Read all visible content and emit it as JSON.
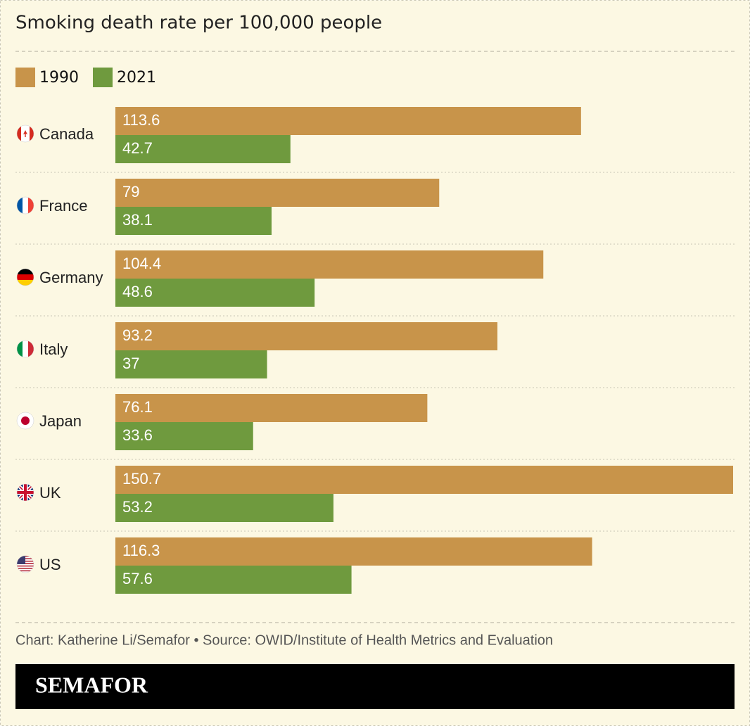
{
  "chart_data": {
    "type": "bar",
    "orientation": "horizontal",
    "title": "Smoking death rate per 100,000 people",
    "categories": [
      "Canada",
      "France",
      "Germany",
      "Italy",
      "Japan",
      "UK",
      "US"
    ],
    "series": [
      {
        "name": "1990",
        "color": "#c8944a",
        "values": [
          113.6,
          79,
          104.4,
          93.2,
          76.1,
          150.7,
          116.3
        ]
      },
      {
        "name": "2021",
        "color": "#6f9a3e",
        "values": [
          42.7,
          38.1,
          48.6,
          37,
          33.6,
          53.2,
          57.6
        ]
      }
    ],
    "source": "Chart: Katherine Li/Semafor • Source: OWID/Institute of Health Metrics and Evaluation",
    "brand": "SEMAFOR"
  }
}
